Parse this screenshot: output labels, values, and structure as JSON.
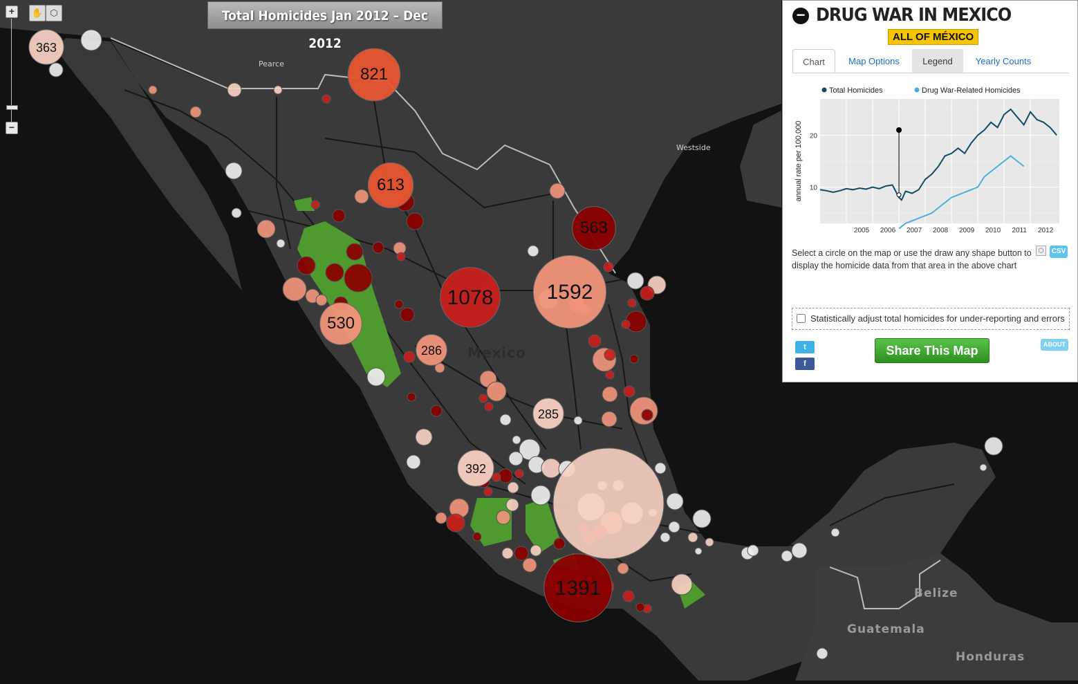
{
  "map": {
    "title": "Total Homicides Jan 2012 – Dec 2012",
    "labels": {
      "pearce": "Pearce",
      "westside": "Westside",
      "mexico": "Mexico",
      "belize": "Belize",
      "guatemala": "Guatemala",
      "honduras": "Honduras"
    },
    "zoom": {
      "in": "+",
      "out": "−"
    },
    "tools": {
      "pan": "pan-hand-icon",
      "draw": "draw-shape-icon"
    },
    "circle_colors": {
      "dark": "#8b0000",
      "red": "#c8201c",
      "mid": "#e8552f",
      "light": "#f09479",
      "pale": "#f7d0c1",
      "white": "#ededed"
    },
    "labeled_circles": [
      {
        "label": "363",
        "value": 363,
        "color": "pale"
      },
      {
        "label": "821",
        "value": 821,
        "color": "mid"
      },
      {
        "label": "613",
        "value": 613,
        "color": "mid"
      },
      {
        "label": "563",
        "value": 563,
        "color": "dark"
      },
      {
        "label": "1078",
        "value": 1078,
        "color": "red"
      },
      {
        "label": "1592",
        "value": 1592,
        "color": "light"
      },
      {
        "label": "530",
        "value": 530,
        "color": "light"
      },
      {
        "label": "286",
        "value": 286,
        "color": "light"
      },
      {
        "label": "285",
        "value": 285,
        "color": "pale"
      },
      {
        "label": "392",
        "value": 392,
        "color": "pale"
      },
      {
        "label": "1391",
        "value": 1391,
        "color": "dark"
      }
    ]
  },
  "panel": {
    "title": "DRUG WAR IN MEXICO",
    "collapse_icon": "minus-circle-icon",
    "region": "ALL OF MÉXICO",
    "tabs": [
      {
        "label": "Chart"
      },
      {
        "label": "Map Options"
      },
      {
        "label": "Legend"
      },
      {
        "label": "Yearly Counts"
      }
    ],
    "instructions": "Select a circle on the map or use the draw any shape button      to display the homicide data from that area in the above chart",
    "csv_label": "CSV",
    "adjust_label": "Statistically adjust total homicides for under-reporting and errors",
    "share_label": "Share This Map",
    "about_label": "ABOUT",
    "social": {
      "twitter": "twitter-share-icon",
      "facebook": "facebook-share-icon"
    }
  },
  "chart_data": {
    "type": "line",
    "title": "",
    "ylabel": "annual rate per 100,000",
    "xlabel": "",
    "x_ticks": [
      "2005",
      "2006",
      "2007",
      "2008",
      "2009",
      "2010",
      "2011",
      "2012"
    ],
    "y_ticks": [
      10,
      20
    ],
    "xlim": [
      2004.0,
      2013.1
    ],
    "ylim": [
      3,
      27
    ],
    "grid": true,
    "legend_position": "top",
    "series": [
      {
        "name": "Total Homicides",
        "color": "#0e4d64",
        "x": [
          2004.0,
          2004.25,
          2004.5,
          2004.75,
          2005.0,
          2005.25,
          2005.5,
          2005.75,
          2006.0,
          2006.25,
          2006.5,
          2006.75,
          2007.0,
          2007.1,
          2007.25,
          2007.5,
          2007.75,
          2008.0,
          2008.25,
          2008.5,
          2008.75,
          2009.0,
          2009.25,
          2009.5,
          2009.75,
          2010.0,
          2010.25,
          2010.5,
          2010.75,
          2011.0,
          2011.25,
          2011.5,
          2011.75,
          2012.0,
          2012.25,
          2012.5,
          2012.75,
          2013.0
        ],
        "y": [
          9.5,
          9.3,
          9.0,
          9.3,
          9.7,
          9.5,
          9.8,
          9.6,
          10.0,
          9.7,
          10.2,
          10.4,
          8.0,
          7.5,
          9.2,
          8.8,
          9.5,
          11.5,
          12.5,
          14.0,
          16.0,
          16.5,
          17.5,
          16.5,
          18.5,
          20.0,
          21.0,
          22.5,
          21.5,
          24.0,
          25.0,
          23.5,
          22.0,
          24.5,
          23.0,
          22.5,
          21.5,
          20.0
        ]
      },
      {
        "name": "Drug War-Related Homicides",
        "color": "#4aaed9",
        "x": [
          2007.0,
          2007.25,
          2007.5,
          2007.75,
          2008.0,
          2008.25,
          2008.5,
          2008.75,
          2009.0,
          2009.25,
          2009.5,
          2009.75,
          2010.0,
          2010.25,
          2010.5,
          2010.75,
          2011.0,
          2011.25,
          2011.5,
          2011.75
        ],
        "y": [
          2.0,
          3.0,
          3.5,
          4.0,
          4.5,
          5.0,
          6.0,
          7.0,
          8.0,
          8.5,
          9.0,
          9.5,
          10.0,
          12.0,
          13.0,
          14.0,
          15.0,
          16.0,
          15.0,
          14.0
        ]
      }
    ],
    "marker": {
      "x": 2007.0,
      "y": 21.0
    }
  }
}
